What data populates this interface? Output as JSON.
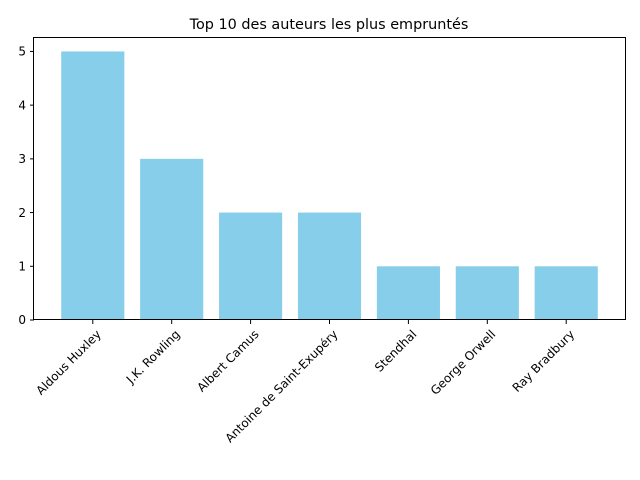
{
  "chart_data": {
    "type": "bar",
    "title": "Top 10 des auteurs les plus empruntés",
    "xlabel": "",
    "ylabel": "",
    "categories": [
      "Aldous Huxley",
      "J.K. Rowling",
      "Albert Camus",
      "Antoine de Saint-Exupéry",
      "Stendhal",
      "George Orwell",
      "Ray Bradbury"
    ],
    "values": [
      5,
      3,
      2,
      2,
      1,
      1,
      1
    ],
    "ylim": [
      0,
      5.25
    ],
    "yticks": [
      0,
      1,
      2,
      3,
      4,
      5
    ],
    "grid": false,
    "bar_color": "#87CEEB"
  }
}
